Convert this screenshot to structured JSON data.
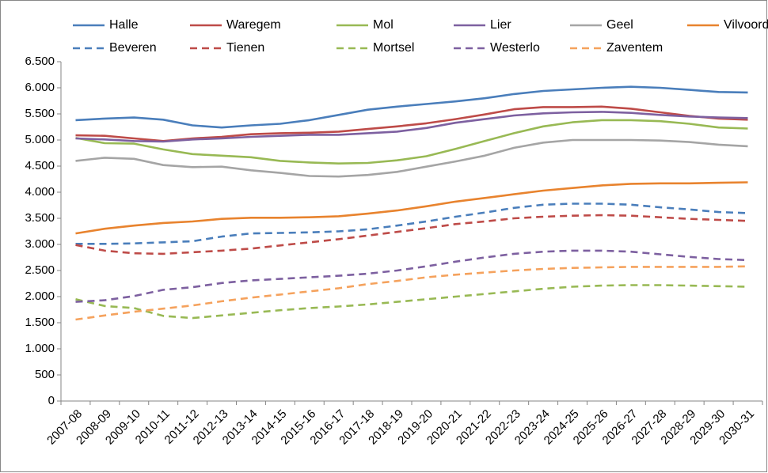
{
  "chart_data": {
    "type": "line",
    "categories": [
      "2007-08",
      "2008-09",
      "2009-10",
      "2010-11",
      "2011-12",
      "2012-13",
      "2013-14",
      "2014-15",
      "2015-16",
      "2016-17",
      "2017-18",
      "2018-19",
      "2019-20",
      "2020-21",
      "2021-22",
      "2022-23",
      "2023-24",
      "2024-25",
      "2025-26",
      "2026-27",
      "2027-28",
      "2028-29",
      "2029-30",
      "2030-31"
    ],
    "series": [
      {
        "name": "Halle",
        "color": "#4a7ebb",
        "style": "solid",
        "values": [
          5380,
          5410,
          5430,
          5390,
          5280,
          5240,
          5280,
          5310,
          5380,
          5480,
          5580,
          5640,
          5690,
          5740,
          5800,
          5880,
          5940,
          5970,
          6000,
          6020,
          6000,
          5960,
          5920,
          5910
        ]
      },
      {
        "name": "Waregem",
        "color": "#be4b48",
        "style": "solid",
        "values": [
          5090,
          5080,
          5030,
          4980,
          5030,
          5060,
          5110,
          5130,
          5140,
          5160,
          5210,
          5260,
          5320,
          5400,
          5490,
          5590,
          5630,
          5630,
          5640,
          5600,
          5530,
          5460,
          5410,
          5390
        ]
      },
      {
        "name": "Mol",
        "color": "#98b954",
        "style": "solid",
        "values": [
          5040,
          4940,
          4930,
          4820,
          4730,
          4700,
          4670,
          4600,
          4570,
          4550,
          4560,
          4610,
          4690,
          4830,
          4980,
          5130,
          5260,
          5340,
          5380,
          5380,
          5360,
          5310,
          5240,
          5220
        ]
      },
      {
        "name": "Lier",
        "color": "#7d60a0",
        "style": "solid",
        "values": [
          5030,
          5010,
          4980,
          4970,
          5010,
          5030,
          5060,
          5080,
          5100,
          5100,
          5130,
          5160,
          5230,
          5330,
          5400,
          5470,
          5510,
          5530,
          5540,
          5520,
          5480,
          5450,
          5430,
          5420
        ]
      },
      {
        "name": "Geel",
        "color": "#a5a5a5",
        "style": "solid",
        "values": [
          4600,
          4660,
          4640,
          4520,
          4480,
          4490,
          4420,
          4370,
          4310,
          4300,
          4330,
          4390,
          4490,
          4590,
          4700,
          4850,
          4950,
          5000,
          5000,
          5000,
          4990,
          4960,
          4910,
          4880
        ]
      },
      {
        "name": "Vilvoorde",
        "color": "#e8832e",
        "style": "solid",
        "values": [
          3210,
          3300,
          3360,
          3410,
          3440,
          3490,
          3510,
          3510,
          3520,
          3540,
          3590,
          3650,
          3730,
          3820,
          3890,
          3960,
          4030,
          4080,
          4130,
          4160,
          4170,
          4170,
          4180,
          4190
        ]
      },
      {
        "name": "Beveren",
        "color": "#4a7ebb",
        "style": "dashed",
        "values": [
          3010,
          3010,
          3020,
          3040,
          3060,
          3150,
          3210,
          3220,
          3230,
          3250,
          3290,
          3360,
          3440,
          3530,
          3610,
          3700,
          3760,
          3780,
          3780,
          3760,
          3710,
          3670,
          3620,
          3600
        ]
      },
      {
        "name": "Tienen",
        "color": "#be4b48",
        "style": "dashed",
        "values": [
          2990,
          2880,
          2830,
          2820,
          2850,
          2880,
          2920,
          2980,
          3040,
          3100,
          3170,
          3240,
          3310,
          3390,
          3440,
          3500,
          3530,
          3550,
          3560,
          3550,
          3520,
          3490,
          3470,
          3450
        ]
      },
      {
        "name": "Mortsel",
        "color": "#98b954",
        "style": "dashed",
        "values": [
          1950,
          1820,
          1780,
          1630,
          1590,
          1640,
          1690,
          1740,
          1780,
          1810,
          1850,
          1900,
          1950,
          2000,
          2050,
          2100,
          2150,
          2190,
          2210,
          2220,
          2220,
          2210,
          2200,
          2190
        ]
      },
      {
        "name": "Westerlo",
        "color": "#7d60a0",
        "style": "dashed",
        "values": [
          1900,
          1930,
          2010,
          2130,
          2180,
          2260,
          2310,
          2340,
          2370,
          2400,
          2440,
          2500,
          2580,
          2670,
          2750,
          2820,
          2860,
          2880,
          2880,
          2860,
          2810,
          2760,
          2720,
          2700
        ]
      },
      {
        "name": "Zaventem",
        "color": "#f5a25d",
        "style": "dashed",
        "values": [
          1560,
          1640,
          1710,
          1770,
          1830,
          1910,
          1980,
          2040,
          2100,
          2160,
          2240,
          2300,
          2370,
          2420,
          2460,
          2500,
          2530,
          2550,
          2560,
          2570,
          2570,
          2570,
          2570,
          2580
        ]
      }
    ],
    "ylim": [
      0,
      6500
    ],
    "yticks": [
      0,
      500,
      {
        "value": 1000,
        "label": "1.000"
      },
      {
        "value": 1500,
        "label": "1.500"
      },
      {
        "value": 2000,
        "label": "2.000"
      },
      {
        "value": 2500,
        "label": "2.500"
      },
      {
        "value": 3000,
        "label": "3.000"
      },
      {
        "value": 3500,
        "label": "3.500"
      },
      {
        "value": 4000,
        "label": "4.000"
      },
      {
        "value": 4500,
        "label": "4.500"
      },
      {
        "value": 5000,
        "label": "5.000"
      },
      {
        "value": 5500,
        "label": "5.500"
      },
      {
        "value": 6000,
        "label": "6.000"
      },
      {
        "value": 6500,
        "label": "6.500"
      }
    ],
    "grid": false,
    "legend": "top"
  }
}
